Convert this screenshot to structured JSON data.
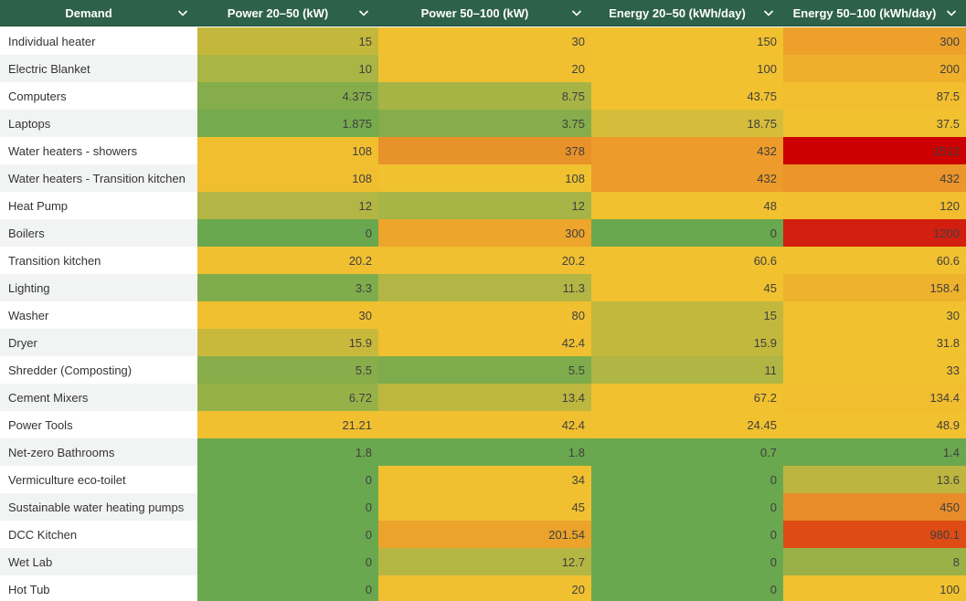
{
  "table": {
    "columns": [
      {
        "label": "Demand"
      },
      {
        "label": "Power 20–50 (kW)"
      },
      {
        "label": "Power 50–100 (kW)"
      },
      {
        "label": "Energy 20–50 (kWh/day)"
      },
      {
        "label": "Energy 50–100 (kWh/day)"
      }
    ],
    "header_icon": "chevron-down-icon",
    "colors": {
      "header_bg": "#2e6149",
      "row_even_bg": "#ffffff",
      "row_odd_bg": "#f2f4f3",
      "scale_low": "#6aa84f",
      "scale_mid": "#f1c232",
      "scale_high": "#cc0000"
    },
    "rows": [
      {
        "label": "Individual heater",
        "values": [
          "15",
          "30",
          "150",
          "300"
        ],
        "colors": [
          "#c3b83c",
          "#f0c030",
          "#f2c12f",
          "#eda12b"
        ]
      },
      {
        "label": "Electric Blanket",
        "values": [
          "10",
          "20",
          "100",
          "200"
        ],
        "colors": [
          "#abb545",
          "#f0c030",
          "#f2c12f",
          "#efaf2b"
        ]
      },
      {
        "label": "Computers",
        "values": [
          "4.375",
          "8.75",
          "43.75",
          "87.5"
        ],
        "colors": [
          "#86ad4b",
          "#a6b446",
          "#f2c12f",
          "#f2bd2e"
        ]
      },
      {
        "label": "Laptops",
        "values": [
          "1.875",
          "3.75",
          "18.75",
          "37.5"
        ],
        "colors": [
          "#75aa4d",
          "#86ad4b",
          "#d5bc3a",
          "#f2c12f"
        ]
      },
      {
        "label": "Water heaters - showers",
        "values": [
          "108",
          "378",
          "432",
          "1512"
        ],
        "colors": [
          "#f1be2f",
          "#e8922a",
          "#ed9b2a",
          "#cc0000"
        ]
      },
      {
        "label": "Water heaters - Transition kitchen",
        "values": [
          "108",
          "108",
          "432",
          "432"
        ],
        "colors": [
          "#f1be2f",
          "#f1c22f",
          "#ed9b2a",
          "#eb952a"
        ]
      },
      {
        "label": "Heat Pump",
        "values": [
          "12",
          "12",
          "48",
          "120"
        ],
        "colors": [
          "#b3b644",
          "#a7b446",
          "#f2c12f",
          "#f2bd2e"
        ]
      },
      {
        "label": "Boilers",
        "values": [
          "0",
          "300",
          "0",
          "1200"
        ],
        "colors": [
          "#6aa84f",
          "#eda52b",
          "#6aa84f",
          "#d21f10"
        ]
      },
      {
        "label": "Transition kitchen",
        "values": [
          "20.2",
          "20.2",
          "60.6",
          "60.6"
        ],
        "colors": [
          "#f0c030",
          "#f0c030",
          "#f2c12f",
          "#f2c12f"
        ]
      },
      {
        "label": "Lighting",
        "values": [
          "3.3",
          "11.3",
          "45",
          "158.4"
        ],
        "colors": [
          "#7fac4c",
          "#b3b644",
          "#f2c12f",
          "#efb22c"
        ]
      },
      {
        "label": "Washer",
        "values": [
          "30",
          "80",
          "15",
          "30"
        ],
        "colors": [
          "#f0c030",
          "#f0c030",
          "#c2b83e",
          "#f2c12f"
        ]
      },
      {
        "label": "Dryer",
        "values": [
          "15.9",
          "42.4",
          "15.9",
          "31.8"
        ],
        "colors": [
          "#c8b93d",
          "#f0c030",
          "#c2b83e",
          "#f2c12f"
        ]
      },
      {
        "label": "Shredder (Composting)",
        "values": [
          "5.5",
          "5.5",
          "11",
          "33"
        ],
        "colors": [
          "#88ad4b",
          "#7eac4c",
          "#b0b644",
          "#f2c12f"
        ]
      },
      {
        "label": "Cement Mixers",
        "values": [
          "6.72",
          "13.4",
          "67.2",
          "134.4"
        ],
        "colors": [
          "#97b149",
          "#bdb73f",
          "#f2c12f",
          "#f2bd2e"
        ]
      },
      {
        "label": "Power Tools",
        "values": [
          "21.21",
          "42.4",
          "24.45",
          "48.9"
        ],
        "colors": [
          "#f0c030",
          "#f0c030",
          "#f2c12f",
          "#f2c12f"
        ]
      },
      {
        "label": "Net-zero Bathrooms",
        "values": [
          "1.8",
          "1.8",
          "0.7",
          "1.4"
        ],
        "colors": [
          "#6aa84f",
          "#6aa84f",
          "#6aa84f",
          "#6aa84f"
        ]
      },
      {
        "label": "Vermiculture eco-toilet",
        "values": [
          "0",
          "34",
          "0",
          "13.6"
        ],
        "colors": [
          "#6aa84f",
          "#f0c030",
          "#6aa84f",
          "#bcb640"
        ]
      },
      {
        "label": "Sustainable water heating pumps",
        "values": [
          "0",
          "45",
          "0",
          "450"
        ],
        "colors": [
          "#6aa84f",
          "#f0c030",
          "#6aa84f",
          "#e88c2a"
        ]
      },
      {
        "label": "DCC Kitchen",
        "values": [
          "0",
          "201.54",
          "0",
          "980.1"
        ],
        "colors": [
          "#6aa84f",
          "#eba32b",
          "#6aa84f",
          "#de4b15"
        ]
      },
      {
        "label": "Wet Lab",
        "values": [
          "0",
          "12.7",
          "0",
          "8"
        ],
        "colors": [
          "#6aa84f",
          "#b4b644",
          "#6aa84f",
          "#9ab148"
        ]
      },
      {
        "label": "Hot Tub",
        "values": [
          "0",
          "20",
          "0",
          "100"
        ],
        "colors": [
          "#6aa84f",
          "#f0c030",
          "#6aa84f",
          "#f2c12f"
        ]
      }
    ]
  }
}
